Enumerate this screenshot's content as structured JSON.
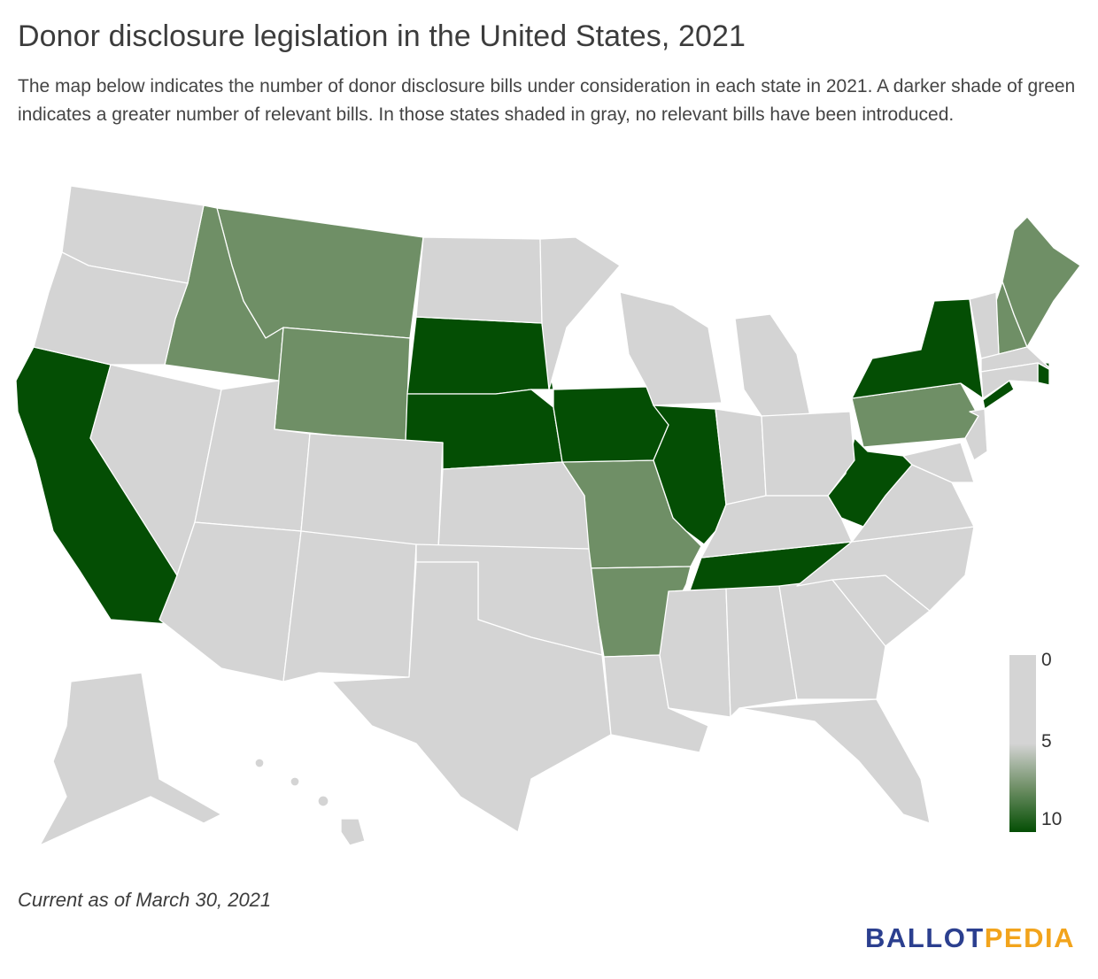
{
  "title": "Donor disclosure legislation in the United States, 2021",
  "description": "The map below indicates the number of donor disclosure bills under consideration in each state in 2021. A darker shade of green indicates a greater number of relevant bills. In those states shaded in gray, no relevant bills have been introduced.",
  "footnote": "Current as of March 30, 2021",
  "logo": {
    "part1": "BALLOT",
    "part2": "PEDIA"
  },
  "legend": {
    "labels": [
      "0",
      "5",
      "10"
    ],
    "colors": {
      "zero": "#d4d4d4",
      "mid": "#6f8f66",
      "high": "#044e04"
    }
  },
  "state_groups": {
    "gray": [
      "Washington",
      "Oregon",
      "Nevada",
      "Utah",
      "Arizona",
      "Colorado",
      "New Mexico",
      "North Dakota",
      "Kansas",
      "Oklahoma",
      "Texas",
      "Minnesota",
      "Wisconsin",
      "Michigan",
      "Indiana",
      "Ohio",
      "Kentucky",
      "Louisiana",
      "Mississippi",
      "Alabama",
      "Georgia",
      "Florida",
      "South Carolina",
      "North Carolina",
      "Virginia",
      "Maryland",
      "Delaware",
      "New Jersey",
      "Vermont",
      "Massachusetts",
      "Connecticut",
      "Alaska",
      "Hawaii"
    ],
    "mid_green": [
      "Idaho",
      "Montana",
      "Wyoming",
      "Missouri",
      "Arkansas",
      "Pennsylvania",
      "New Hampshire",
      "Maine"
    ],
    "dark_green": [
      "California",
      "South Dakota",
      "Nebraska",
      "Iowa",
      "Illinois",
      "Tennessee",
      "West Virginia",
      "New York",
      "Rhode Island"
    ]
  }
}
